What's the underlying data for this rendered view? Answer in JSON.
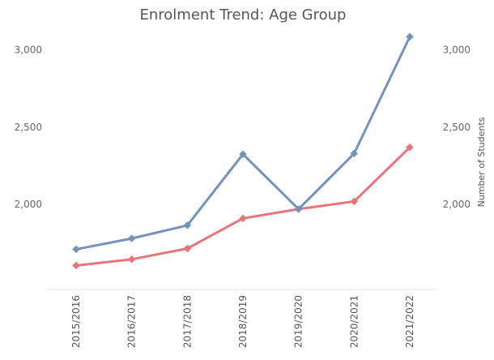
{
  "chart_data": {
    "type": "line",
    "title": "Enrolment Trend: Age Group",
    "xlabel": "",
    "ylabel_left": "",
    "ylabel_right": "Number of Students",
    "categories": [
      "2015/2016",
      "2016/2017",
      "2017/2018",
      "2018/2019",
      "2019/2020",
      "2020/2021",
      "2021/2022"
    ],
    "series": [
      {
        "color": "#7593ba",
        "values": [
          1710,
          1780,
          1865,
          2325,
          1970,
          2330,
          3085
        ]
      },
      {
        "color": "#e8757b",
        "values": [
          1605,
          1645,
          1715,
          1910,
          1970,
          2020,
          2370
        ]
      }
    ],
    "yticks": [
      "3,000",
      "2,500",
      "2,000"
    ],
    "ytick_values": [
      3000,
      2500,
      2000
    ],
    "ylim": [
      1450,
      3150
    ],
    "grid": false,
    "legend": "none"
  }
}
